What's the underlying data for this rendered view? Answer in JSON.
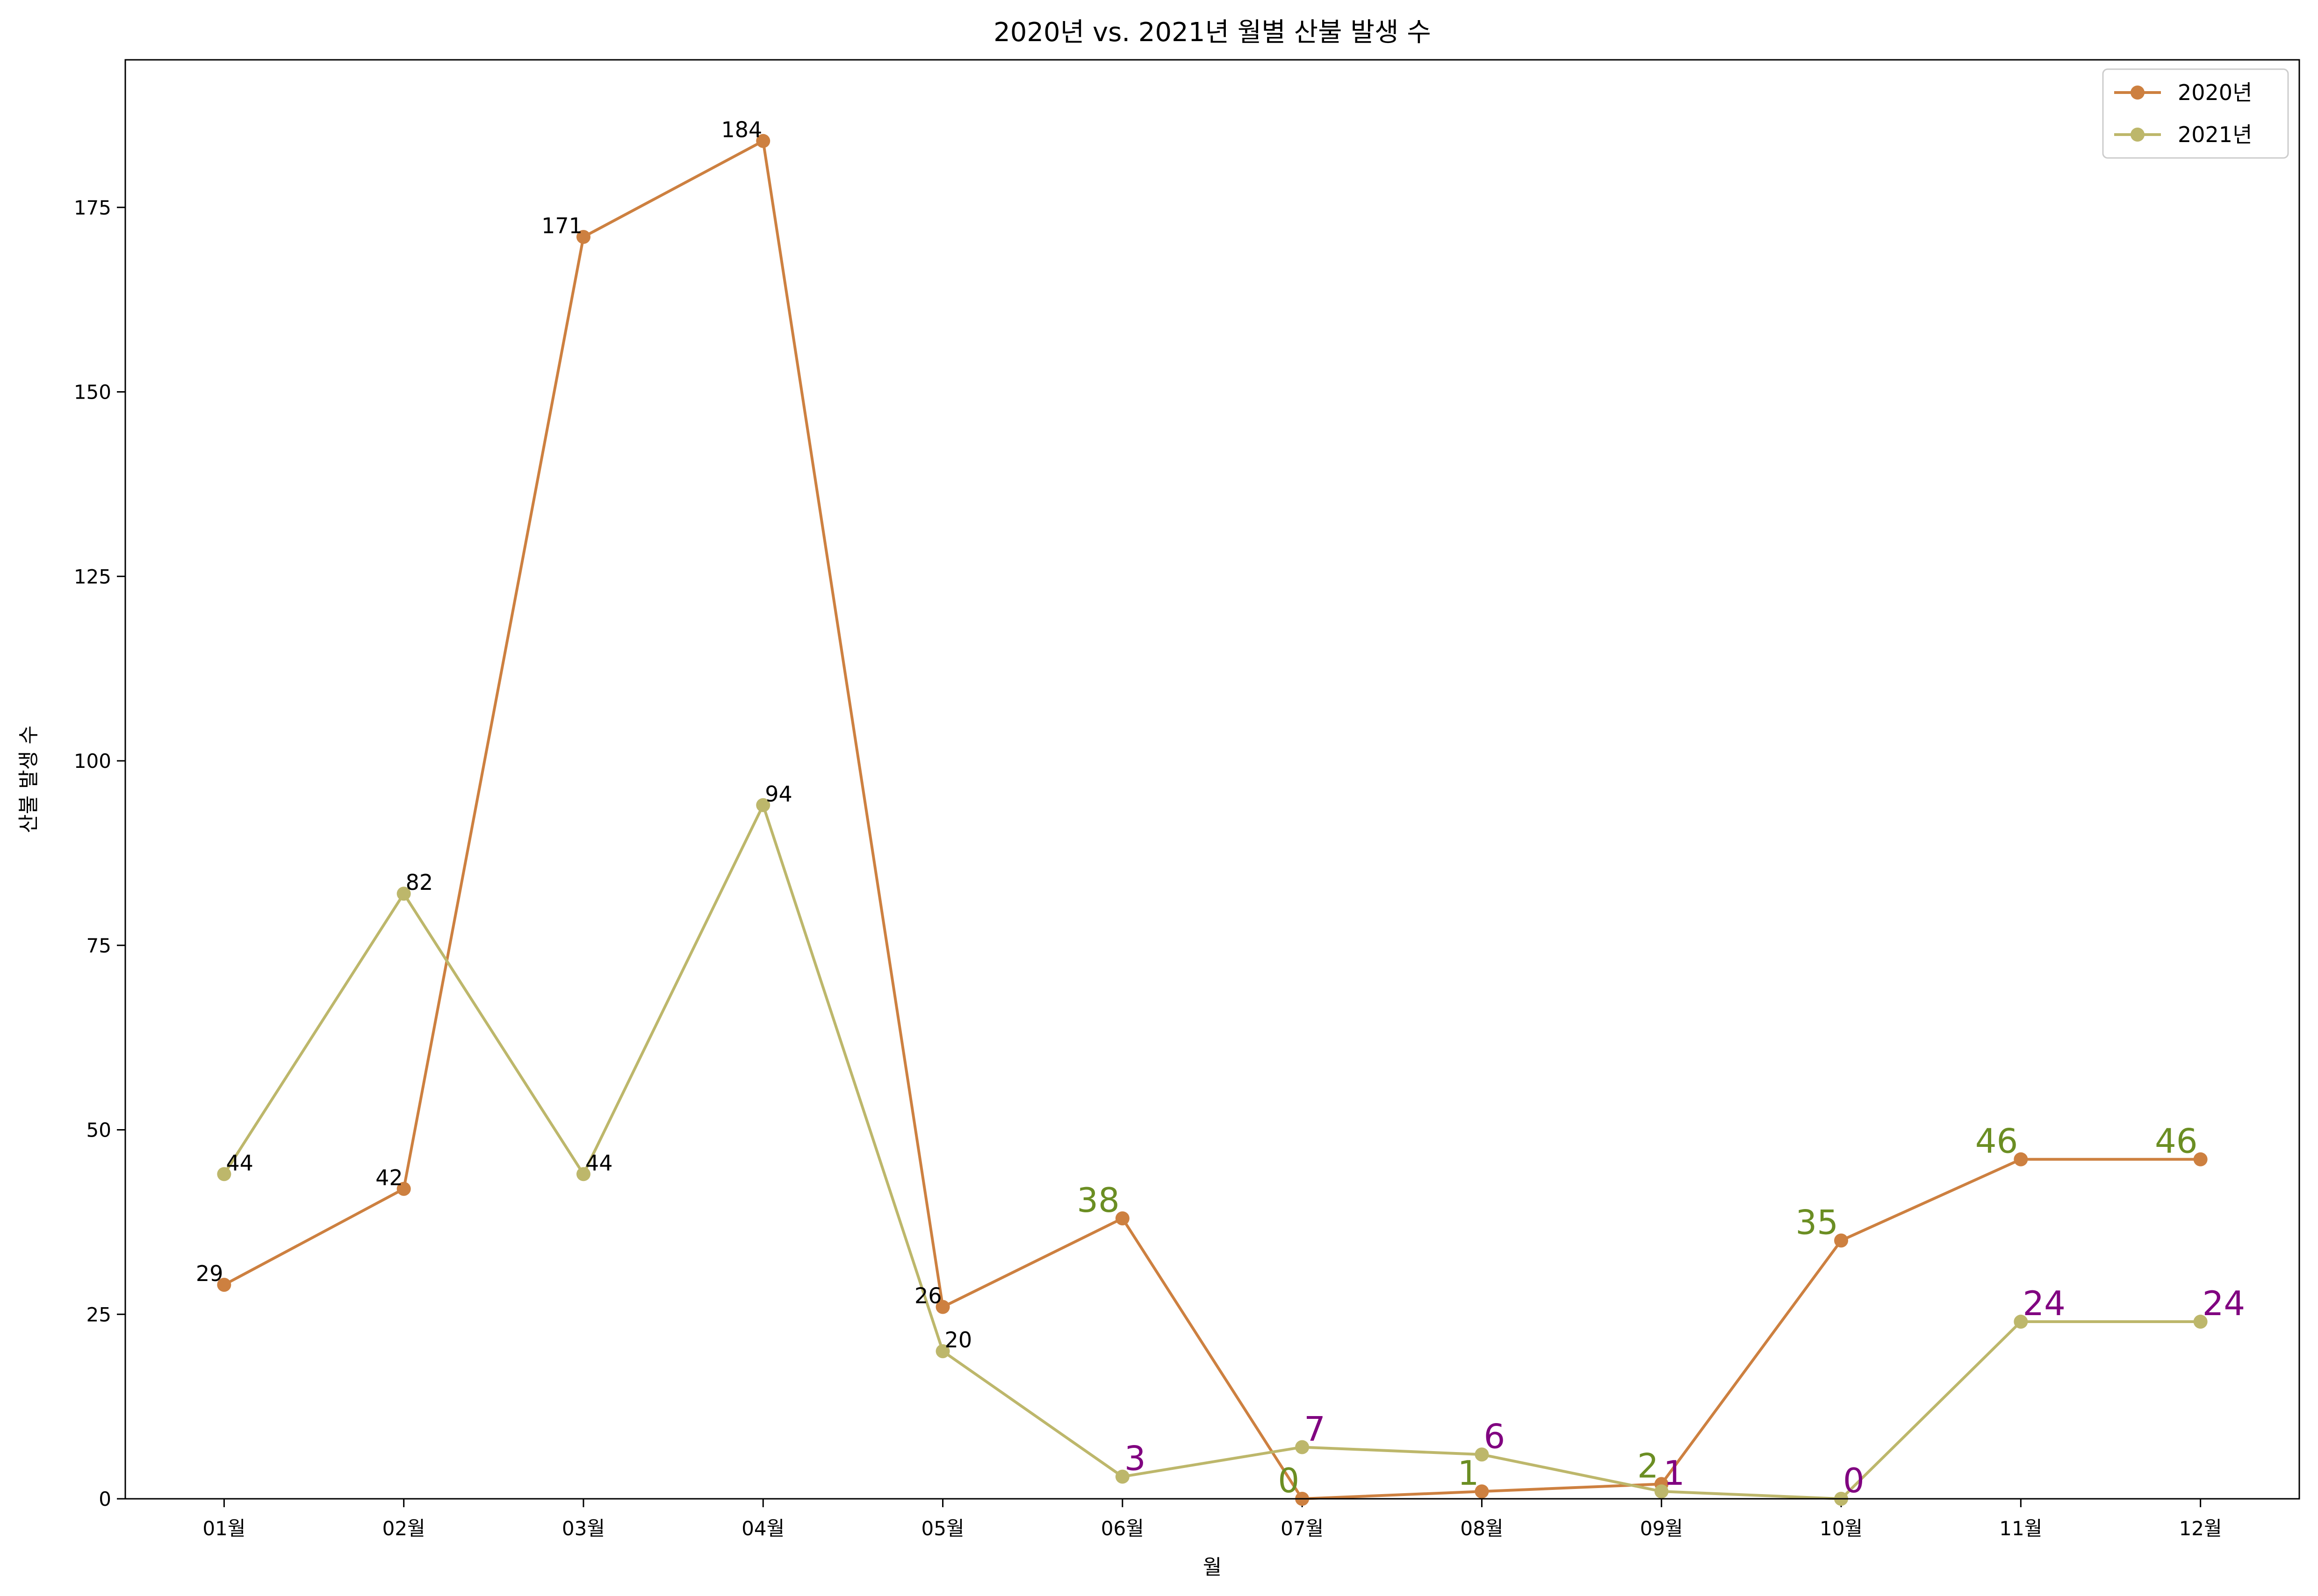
{
  "chart_data": {
    "type": "line",
    "title": "2020년 vs. 2021년 월별 산불 발생 수",
    "xlabel": "월",
    "ylabel": "산불 발생 수",
    "categories": [
      "01월",
      "02월",
      "03월",
      "04월",
      "05월",
      "06월",
      "07월",
      "08월",
      "09월",
      "10월",
      "11월",
      "12월"
    ],
    "ylim": [
      0,
      195
    ],
    "yticks": [
      0,
      25,
      50,
      75,
      100,
      125,
      150,
      175
    ],
    "grid": false,
    "legend_position": "top-right",
    "series": [
      {
        "name": "2020년",
        "color": "#cd8040",
        "values": [
          29,
          42,
          171,
          184,
          26,
          38,
          0,
          1,
          2,
          35,
          46,
          46
        ],
        "labels": [
          "29",
          "42",
          "171",
          "184",
          "26",
          "38",
          "0",
          "1",
          "2",
          "35",
          "46",
          "46"
        ]
      },
      {
        "name": "2021년",
        "color": "#bdb76b",
        "values": [
          44,
          82,
          44,
          94,
          20,
          3,
          7,
          6,
          1,
          0,
          24,
          24
        ],
        "labels": [
          "44",
          "82",
          "44",
          "94",
          "20",
          "3",
          "7",
          "6",
          "1",
          "0",
          "24",
          "24"
        ]
      }
    ]
  }
}
